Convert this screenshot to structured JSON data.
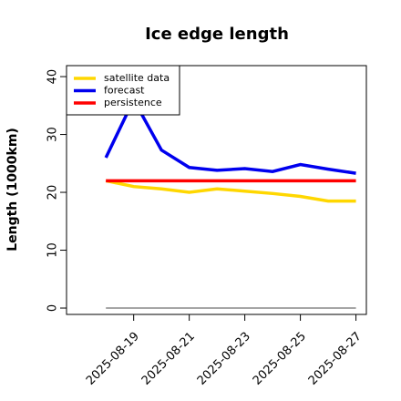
{
  "chart_data": {
    "type": "line",
    "title": "Ice edge length",
    "y_label": "Length (1000km)",
    "x": [
      "2025-08-18",
      "2025-08-19",
      "2025-08-20",
      "2025-08-21",
      "2025-08-22",
      "2025-08-23",
      "2025-08-24",
      "2025-08-25",
      "2025-08-26",
      "2025-08-27"
    ],
    "series": [
      {
        "name": "satellite data",
        "color": "#ffd700",
        "values": [
          22,
          21,
          20.6,
          20,
          20.6,
          20.2,
          19.8,
          19.3,
          18.5,
          18.5
        ]
      },
      {
        "name": "forecast",
        "color": "#0000ee",
        "values": [
          26,
          36,
          27.3,
          24.3,
          23.8,
          24.1,
          23.6,
          24.8,
          24.0,
          23.3
        ]
      },
      {
        "name": "persistence",
        "color": "#ff0000",
        "values": [
          22,
          22,
          22,
          22,
          22,
          22,
          22,
          22,
          22,
          22
        ]
      }
    ],
    "hline": 0,
    "hline_color": "#888888",
    "xlim": [
      "2025-08-16T14:00:00Z",
      "2025-08-27T09:00:00Z"
    ],
    "xticks": [
      {
        "value": "2025-08-19",
        "label": "2025-08-19"
      },
      {
        "value": "2025-08-21",
        "label": "2025-08-21"
      },
      {
        "value": "2025-08-23",
        "label": "2025-08-23"
      },
      {
        "value": "2025-08-25",
        "label": "2025-08-25"
      },
      {
        "value": "2025-08-27",
        "label": "2025-08-27"
      }
    ],
    "xtick_colors": [
      "#228b22",
      "#000000",
      "#000000",
      "#000000",
      "#000000"
    ],
    "ylim": [
      -1.1,
      41.9
    ],
    "yticks": [
      0,
      10,
      20,
      30,
      40
    ],
    "legend": "top-left"
  }
}
